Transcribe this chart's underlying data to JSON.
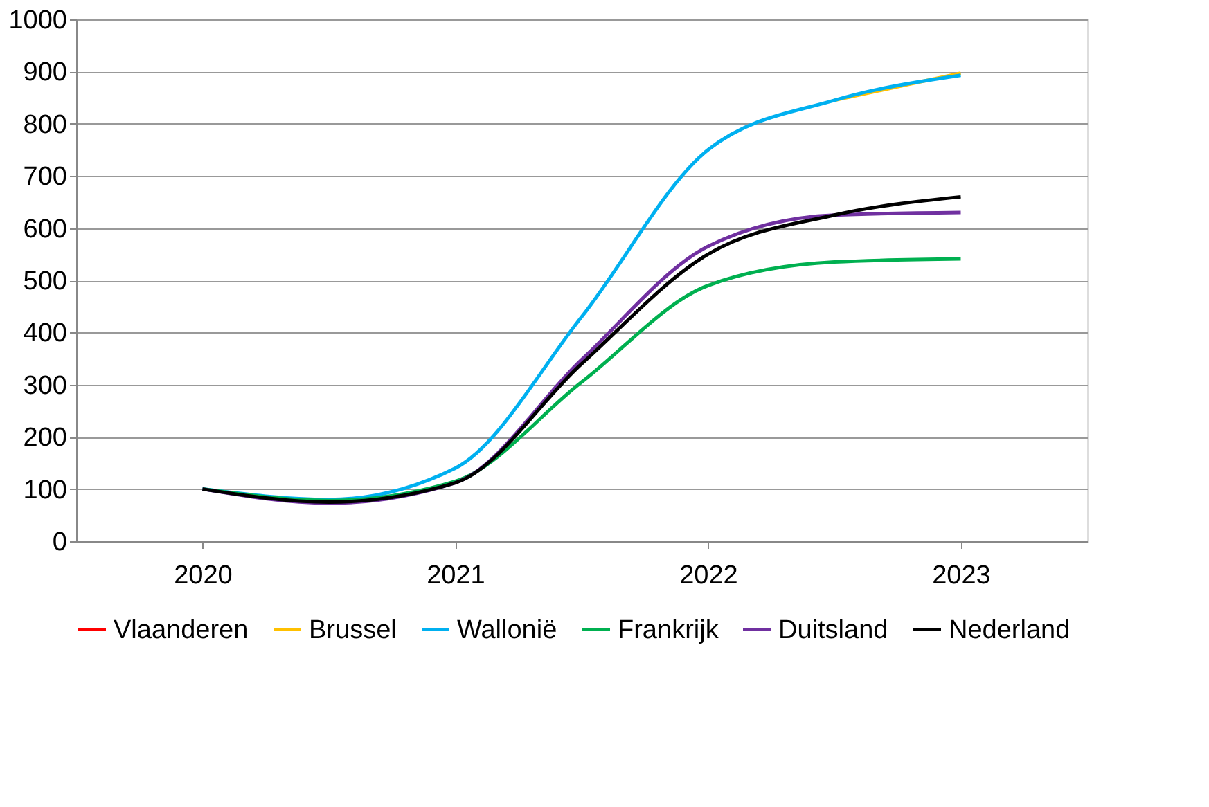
{
  "chart_data": {
    "type": "line",
    "x": [
      2020,
      2020.5,
      2021,
      2021.5,
      2022,
      2022.5,
      2023
    ],
    "xlim": [
      2019.5,
      2023.5
    ],
    "xticks": [
      2020,
      2021,
      2022,
      2023
    ],
    "ylim": [
      0,
      1000
    ],
    "yticks": [
      0,
      100,
      200,
      300,
      400,
      500,
      600,
      700,
      800,
      900,
      1000
    ],
    "grid": "y",
    "legend": "bottom",
    "marker": "none",
    "line_style": "solid",
    "series": [
      {
        "name": "Vlaanderen",
        "color": "#ff0000",
        "values": [
          null,
          null,
          null,
          null,
          null,
          null,
          null
        ]
      },
      {
        "name": "Brussel",
        "color": "#ffc000",
        "values": [
          null,
          null,
          null,
          null,
          null,
          845,
          897
        ]
      },
      {
        "name": "Wallonië",
        "color": "#00b0f0",
        "values": [
          100,
          80,
          140,
          430,
          750,
          845,
          893
        ]
      },
      {
        "name": "Frankrijk",
        "color": "#00b050",
        "values": [
          100,
          78,
          115,
          305,
          490,
          535,
          541
        ]
      },
      {
        "name": "Duitsland",
        "color": "#7030a0",
        "values": [
          100,
          73,
          112,
          348,
          565,
          625,
          630
        ]
      },
      {
        "name": "Nederland",
        "color": "#000000",
        "values": [
          100,
          75,
          112,
          340,
          550,
          625,
          660
        ]
      }
    ]
  }
}
